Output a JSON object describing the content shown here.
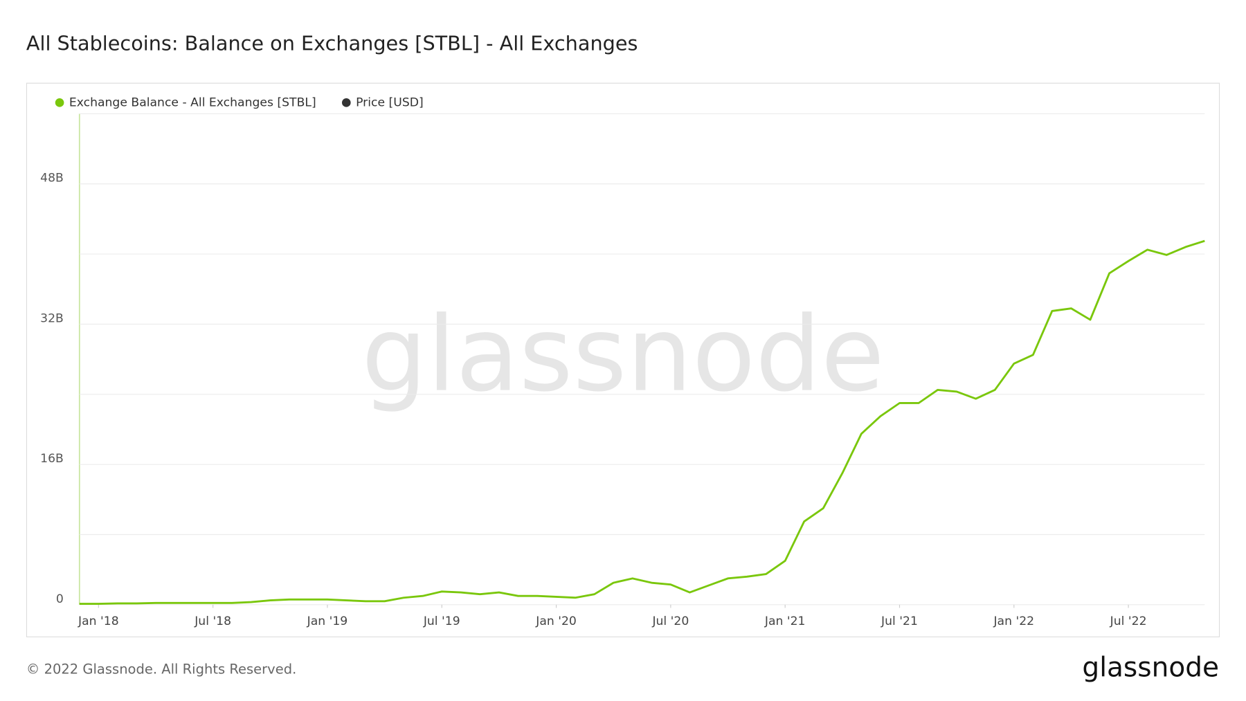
{
  "chart_data": {
    "type": "line",
    "title": "All Stablecoins: Balance on Exchanges [STBL] - All Exchanges",
    "watermark": "glassnode",
    "footer": "© 2022 Glassnode. All Rights Reserved.",
    "logo": "glassnode",
    "x": [
      "2017-12",
      "2018-01",
      "2018-02",
      "2018-03",
      "2018-04",
      "2018-05",
      "2018-06",
      "2018-07",
      "2018-08",
      "2018-09",
      "2018-10",
      "2018-11",
      "2018-12",
      "2019-01",
      "2019-02",
      "2019-03",
      "2019-04",
      "2019-05",
      "2019-06",
      "2019-07",
      "2019-08",
      "2019-09",
      "2019-10",
      "2019-11",
      "2019-12",
      "2020-01",
      "2020-02",
      "2020-03",
      "2020-04",
      "2020-05",
      "2020-06",
      "2020-07",
      "2020-08",
      "2020-09",
      "2020-10",
      "2020-11",
      "2020-12",
      "2021-01",
      "2021-02",
      "2021-03",
      "2021-04",
      "2021-05",
      "2021-06",
      "2021-07",
      "2021-08",
      "2021-09",
      "2021-10",
      "2021-11",
      "2021-12",
      "2022-01",
      "2022-02",
      "2022-03",
      "2022-04",
      "2022-05",
      "2022-06",
      "2022-07",
      "2022-08",
      "2022-09",
      "2022-10",
      "2022-11"
    ],
    "series": [
      {
        "name": "Exchange Balance - All Exchanges [STBL]",
        "color": "#7ac70c",
        "values": [
          100000000.0,
          100000000.0,
          150000000.0,
          150000000.0,
          200000000.0,
          200000000.0,
          200000000.0,
          200000000.0,
          200000000.0,
          300000000.0,
          500000000.0,
          600000000.0,
          600000000.0,
          600000000.0,
          500000000.0,
          400000000.0,
          400000000.0,
          800000000.0,
          1000000000.0,
          1500000000.0,
          1400000000.0,
          1200000000.0,
          1400000000.0,
          1000000000.0,
          1000000000.0,
          900000000.0,
          800000000.0,
          1200000000.0,
          2500000000.0,
          3000000000.0,
          2500000000.0,
          2300000000.0,
          1400000000.0,
          2200000000.0,
          3000000000.0,
          3200000000.0,
          3500000000.0,
          5000000000.0,
          9500000000.0,
          11000000000.0,
          15000000000.0,
          19500000000.0,
          21500000000.0,
          23000000000.0,
          23000000000.0,
          24500000000.0,
          24300000000.0,
          23500000000.0,
          24500000000.0,
          27500000000.0,
          28500000000.0,
          33500000000.0,
          33800000000.0,
          32500000000.0,
          37800000000.0,
          39200000000.0,
          40500000000.0,
          39900000000.0,
          40800000000.0,
          41500000000.0
        ]
      },
      {
        "name": "Price [USD]",
        "color": "#333333",
        "values": [
          null,
          null,
          null,
          null,
          null,
          null,
          null,
          null,
          null,
          null,
          null,
          null,
          null,
          null,
          null,
          null,
          null,
          null,
          null,
          null,
          null,
          null,
          null,
          null,
          null,
          null,
          null,
          null,
          null,
          null,
          null,
          null,
          null,
          null,
          null,
          null,
          null,
          null,
          null,
          null,
          null,
          null,
          null,
          null,
          null,
          null,
          null,
          null,
          null,
          null,
          null,
          null,
          null,
          null,
          null,
          null,
          null,
          null,
          null,
          null
        ]
      }
    ],
    "xlim": [
      "2017-12",
      "2022-11"
    ],
    "xticks": [
      {
        "value": "2018-01",
        "label": "Jan '18"
      },
      {
        "value": "2018-07",
        "label": "Jul '18"
      },
      {
        "value": "2019-01",
        "label": "Jan '19"
      },
      {
        "value": "2019-07",
        "label": "Jul '19"
      },
      {
        "value": "2020-01",
        "label": "Jan '20"
      },
      {
        "value": "2020-07",
        "label": "Jul '20"
      },
      {
        "value": "2021-01",
        "label": "Jan '21"
      },
      {
        "value": "2021-07",
        "label": "Jul '21"
      },
      {
        "value": "2022-01",
        "label": "Jan '22"
      },
      {
        "value": "2022-07",
        "label": "Jul '22"
      }
    ],
    "ylim": [
      0,
      56000000000.0
    ],
    "yticks": [
      0,
      {
        "value": 8000000000.0,
        "label": null
      },
      {
        "value": 16000000000.0,
        "label": "16B"
      },
      {
        "value": 24000000000.0,
        "label": null
      },
      {
        "value": 32000000000.0,
        "label": "32B"
      },
      {
        "value": 40000000000.0,
        "label": null
      },
      {
        "value": 48000000000.0,
        "label": "48B"
      },
      {
        "value": 56000000000.0,
        "label": null
      }
    ],
    "grid": true
  }
}
